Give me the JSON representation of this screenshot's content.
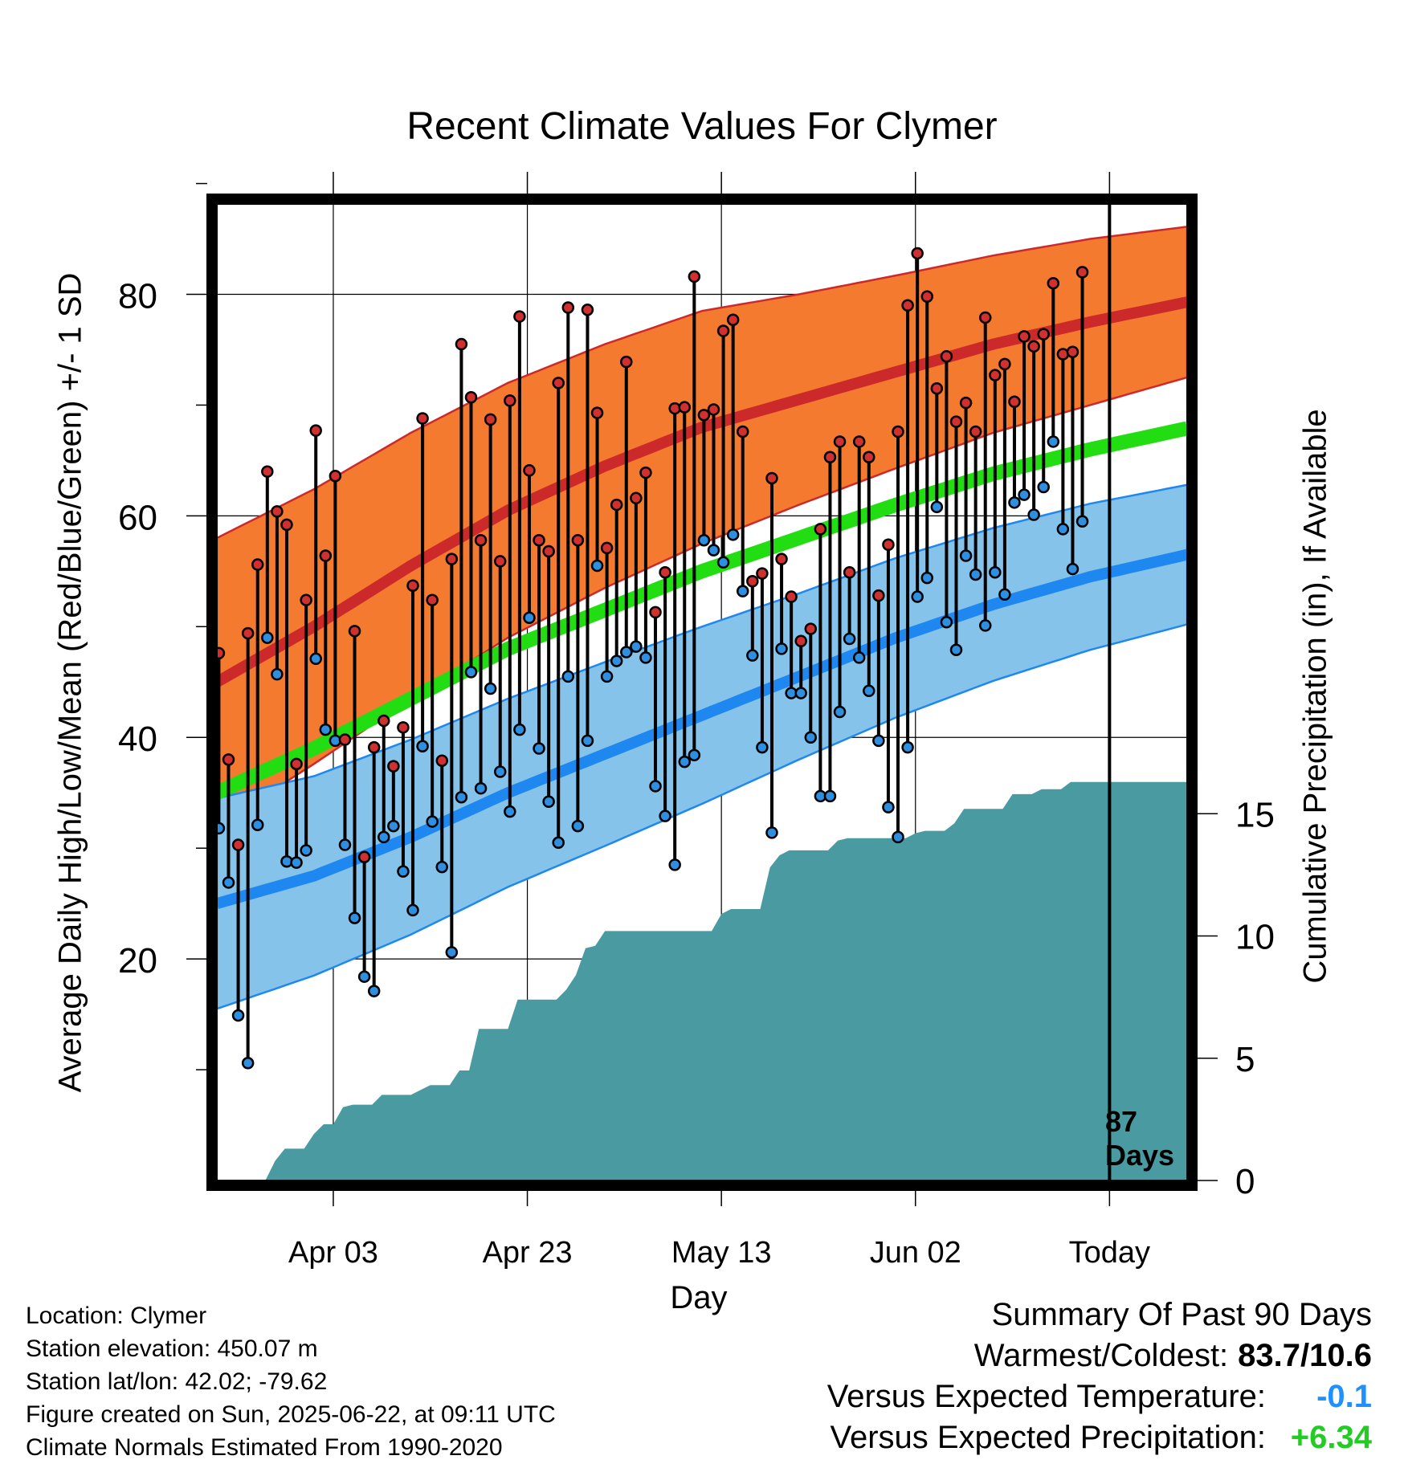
{
  "chart_data": {
    "type": "line",
    "title": "Recent Climate Values For Clymer",
    "xlabel": "Day",
    "ylabel_left": "Average Daily High/Low/Mean (Red/Blue/Green) +/- 1 SD",
    "ylabel_right": "Cumulative Precipitation (in), If Available",
    "x_tick_labels": [
      "Apr 03",
      "Apr 23",
      "May 13",
      "Jun 02",
      "Today"
    ],
    "x_tick_days": [
      12,
      32,
      52,
      72,
      92
    ],
    "x_range_days": [
      0,
      100
    ],
    "y_left_ticks": [
      20,
      40,
      60,
      80
    ],
    "y_left_range": [
      0,
      88.3
    ],
    "y_right_ticks": [
      0,
      5,
      10,
      15
    ],
    "y_right_range": [
      0,
      40
    ],
    "today_day": 92,
    "today_annotation": [
      "87",
      "Days"
    ],
    "colors": {
      "high_band": "#f47a30",
      "high_line": "#cc2a2a",
      "low_band": "#86c3ea",
      "low_line": "#1e88f0",
      "mean_line": "#22dd11",
      "precip": "#4a9aa2",
      "high_marker": "#d03030",
      "low_marker": "#2e8ee0"
    },
    "normals": {
      "days": [
        0,
        10,
        20,
        30,
        40,
        50,
        60,
        70,
        80,
        90,
        100
      ],
      "high_mean": [
        45,
        50,
        55.5,
        60.5,
        64.5,
        68,
        70.5,
        73,
        75.5,
        77.5,
        79.3
      ],
      "high_sd": [
        13,
        12.4,
        12,
        11.5,
        11,
        10.5,
        9.5,
        8.7,
        8,
        7.5,
        6.8
      ],
      "low_mean": [
        25,
        27.5,
        31,
        35,
        38.5,
        42,
        45.5,
        49,
        52,
        54.5,
        56.5
      ],
      "low_sd": [
        9.5,
        9.0,
        8.8,
        8.5,
        8.3,
        8.0,
        7.5,
        7.2,
        6.9,
        6.6,
        6.3
      ],
      "daily_mean": [
        35,
        39,
        43.5,
        48,
        51.5,
        55,
        58,
        61,
        63.8,
        66,
        67.9
      ]
    },
    "observations": {
      "high": [
        47.6,
        38,
        30.3,
        49.4,
        55.6,
        64,
        60.4,
        59.2,
        37.6,
        52.4,
        67.7,
        56.4,
        63.6,
        39.8,
        49.6,
        29.2,
        39.1,
        41.5,
        37.4,
        40.9,
        53.7,
        68.8,
        52.4,
        37.9,
        56.1,
        75.5,
        70.7,
        57.8,
        68.7,
        55.9,
        70.4,
        78,
        64.1,
        57.8,
        56.8,
        72,
        78.8,
        57.8,
        78.6,
        69.3,
        57.1,
        61,
        73.9,
        61.6,
        63.9,
        51.3,
        54.9,
        69.7,
        69.8,
        81.6,
        69.1,
        69.6,
        76.7,
        77.7,
        67.6,
        54.1,
        54.8,
        63.4,
        56.1,
        52.7,
        48.7,
        49.8,
        58.8,
        65.3,
        66.7,
        54.9,
        66.7,
        65.3,
        52.8,
        57.4,
        67.6,
        79,
        83.7,
        79.8,
        71.5,
        74.4,
        68.5,
        70.2,
        67.6,
        77.9,
        72.7,
        73.7,
        70.3,
        76.2,
        75.3,
        76.4,
        81,
        74.6,
        74.8,
        82
      ],
      "low": [
        31.8,
        26.9,
        14.9,
        10.6,
        32.1,
        49,
        45.7,
        28.8,
        28.7,
        29.8,
        47.1,
        40.7,
        39.7,
        30.3,
        23.7,
        18.4,
        17.1,
        31,
        32,
        27.9,
        24.4,
        39.2,
        32.4,
        28.3,
        20.6,
        34.6,
        45.9,
        35.4,
        44.4,
        36.9,
        33.3,
        40.7,
        50.8,
        39,
        34.2,
        30.5,
        45.5,
        32,
        39.7,
        55.5,
        45.5,
        46.9,
        47.7,
        48.2,
        47.2,
        35.6,
        32.9,
        28.5,
        37.8,
        38.4,
        57.8,
        56.9,
        55.8,
        58.3,
        53.2,
        47.4,
        39.1,
        31.4,
        48,
        44,
        44,
        40,
        34.7,
        34.7,
        42.3,
        48.9,
        47.2,
        44.2,
        39.7,
        33.7,
        31,
        39.1,
        52.7,
        54.4,
        60.8,
        50.4,
        47.9,
        56.4,
        54.7,
        50.1,
        54.9,
        52.9,
        61.2,
        61.9,
        60.1,
        62.6,
        66.7,
        58.8,
        55.2,
        59.5
      ]
    },
    "precip_cumulative": [
      0,
      0,
      0,
      0,
      0,
      0,
      0.8,
      1.3,
      1.3,
      1.3,
      1.9,
      2.3,
      2.3,
      3.0,
      3.1,
      3.1,
      3.1,
      3.5,
      3.5,
      3.5,
      3.5,
      3.7,
      3.9,
      3.9,
      3.9,
      4.5,
      4.5,
      6.2,
      6.2,
      6.2,
      6.2,
      7.4,
      7.4,
      7.4,
      7.4,
      7.4,
      7.8,
      8.4,
      9.5,
      9.6,
      10.2,
      10.2,
      10.2,
      10.2,
      10.2,
      10.2,
      10.2,
      10.2,
      10.2,
      10.2,
      10.2,
      10.2,
      10.9,
      11.1,
      11.1,
      11.1,
      11.1,
      12.8,
      13.3,
      13.5,
      13.5,
      13.5,
      13.5,
      13.5,
      13.9,
      14.0,
      14.0,
      14.0,
      14.0,
      14.0,
      14.0,
      14.0,
      14.2,
      14.3,
      14.3,
      14.3,
      14.6,
      15.2,
      15.2,
      15.2,
      15.2,
      15.2,
      15.8,
      15.8,
      15.8,
      16.0,
      16.0,
      16.0,
      16.3,
      16.3,
      16.3,
      16.3,
      16.3,
      16.3,
      16.3,
      16.3,
      16.3,
      16.3,
      16.3,
      16.3,
      16.3
    ]
  },
  "location": {
    "location_line": "Location: Clymer",
    "elevation_line": "Station elevation: 450.07 m",
    "latlon_line": "Station lat/lon: 42.02; -79.62",
    "created_line": "Figure created on Sun, 2025-06-22, at 09:11 UTC",
    "normals_line": "Climate Normals Estimated From 1990-2020"
  },
  "summary": {
    "heading": "Summary Of Past 90 Days",
    "warm_cold_label": "Warmest/Coldest:",
    "warm_cold_value": "83.7/10.6",
    "temp_label": "Versus Expected Temperature:",
    "temp_value": "-0.1",
    "precip_label": "Versus Expected Precipitation:",
    "precip_value": "+6.34"
  }
}
